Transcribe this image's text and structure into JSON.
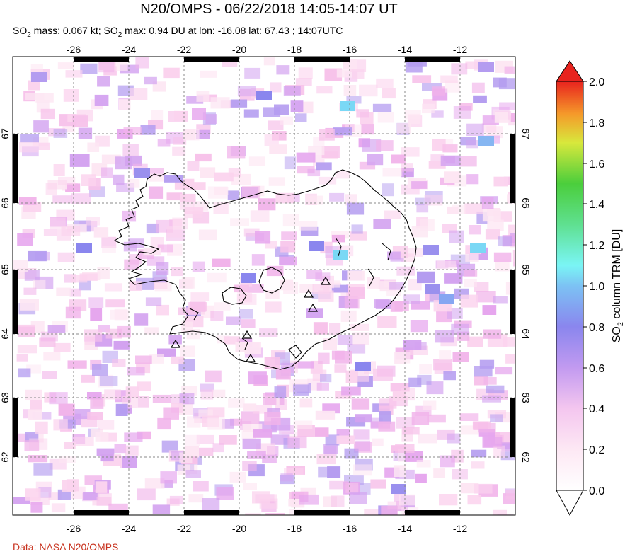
{
  "title": "N20/OMPS - 06/22/2018 14:05-14:07 UT",
  "subtitle": {
    "p1": "SO",
    "p1_sub": "2",
    "p2": " mass: 0.067 kt; SO",
    "p2_sub": "2",
    "p3": " max: 0.94 DU at lon: -16.08 lat: 67.43 ; 14:07UTC"
  },
  "credit": "Data: NASA N20/OMPS",
  "map": {
    "lon_ticks": [
      "-26",
      "-24",
      "-22",
      "-20",
      "-18",
      "-16",
      "-14",
      "-12"
    ],
    "lat_ticks": [
      "67",
      "66",
      "65",
      "64",
      "63",
      "62"
    ],
    "region": "Iceland"
  },
  "colorbar": {
    "label_pre": "SO",
    "label_sub": "2",
    "label_post": " column TRM [DU]",
    "ticks": [
      "0.0",
      "0.2",
      "0.4",
      "0.6",
      "0.8",
      "1.0",
      "1.2",
      "1.4",
      "1.6",
      "1.8",
      "2.0"
    ]
  },
  "colors": {
    "credit": "#c8321e",
    "grid": "#888888"
  }
}
